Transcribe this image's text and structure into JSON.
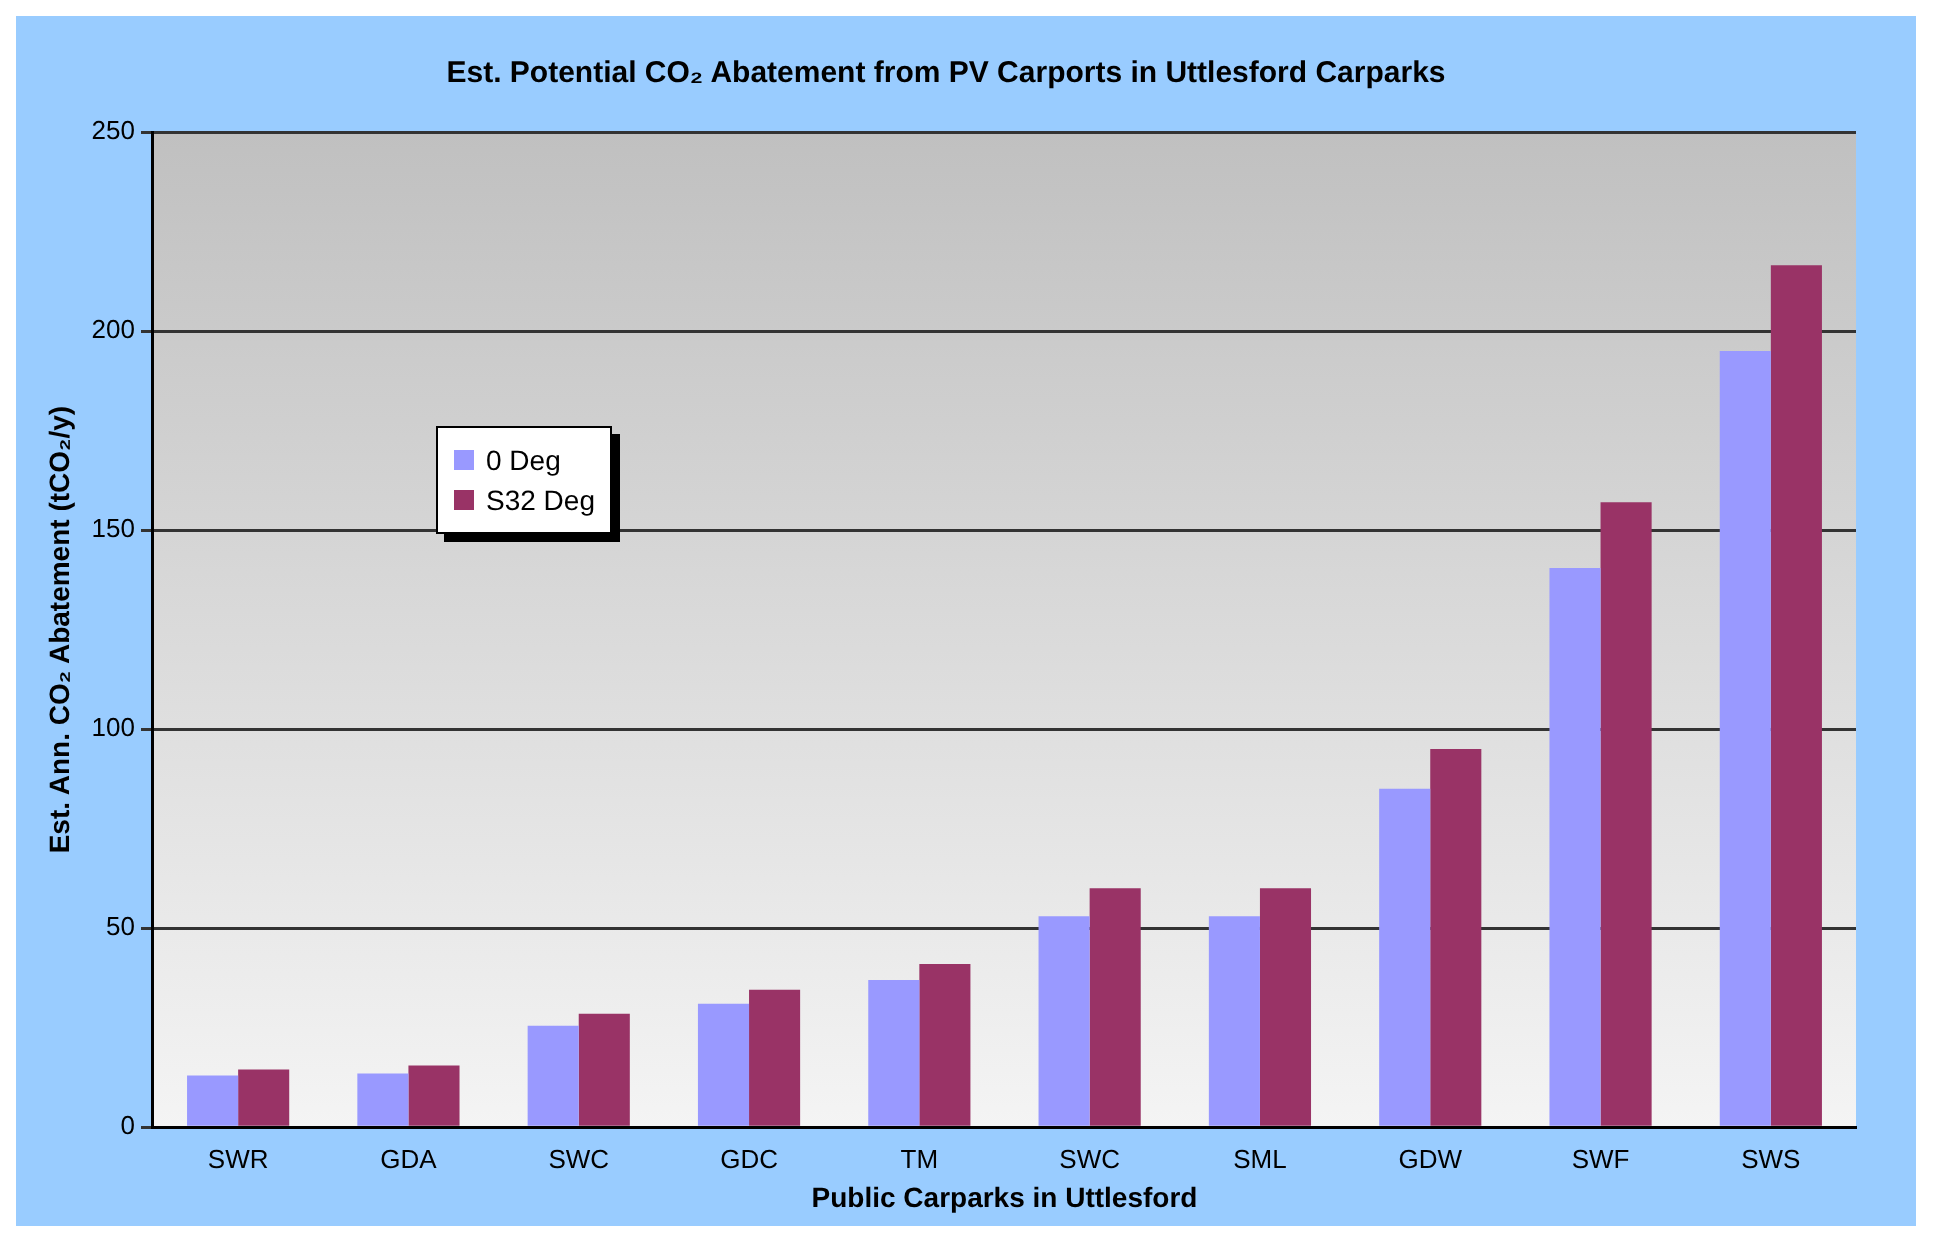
{
  "chart_data": {
    "type": "bar",
    "title": "Est. Potential CO₂ Abatement from PV Carports in Uttlesford Carparks",
    "xlabel": "Public Carparks in Uttlesford",
    "ylabel": "Est. Ann. CO₂ Abatement (tCO₂/y)",
    "categories": [
      "SWR",
      "GDA",
      "SWC",
      "GDC",
      "TM",
      "SWC",
      "SML",
      "GDW",
      "SWF",
      "SWS"
    ],
    "series": [
      {
        "name": "0 Deg",
        "color": "#9999ff",
        "values": [
          13,
          13.5,
          25.5,
          31,
          37,
          53,
          53,
          85,
          140.5,
          195
        ]
      },
      {
        "name": "S32 Deg",
        "color": "#993366",
        "values": [
          14.5,
          15.5,
          28.5,
          34.5,
          41,
          60,
          60,
          95,
          157,
          216.5
        ]
      }
    ],
    "ylim": [
      0,
      250
    ],
    "yticks": [
      0,
      50,
      100,
      150,
      200,
      250
    ],
    "grid": "y",
    "legend": "top left"
  }
}
